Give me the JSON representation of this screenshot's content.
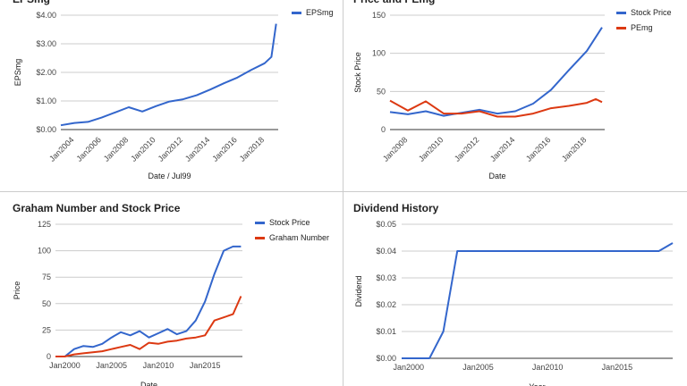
{
  "chart_data": [
    {
      "type": "line",
      "title": "EPSmg",
      "xlabel": "Date / Jul99",
      "ylabel": "EPSmg",
      "xlim": [
        2003,
        2019
      ],
      "ylim": [
        0,
        4
      ],
      "yticks": [
        "$0.00",
        "$1.00",
        "$2.00",
        "$3.00",
        "$4.00"
      ],
      "xtick_values": [
        2004,
        2006,
        2008,
        2010,
        2012,
        2014,
        2016,
        2018
      ],
      "xtick_labels": [
        "Jan2004",
        "Jan2006",
        "Jan2008",
        "Jan2010",
        "Jan2012",
        "Jan2014",
        "Jan2016",
        "Jan2018"
      ],
      "legend": "top-right",
      "series": [
        {
          "name": "EPSmg",
          "color": "#3366cc",
          "x": [
            2003,
            2004,
            2005,
            2006,
            2007,
            2008,
            2009,
            2010,
            2011,
            2012,
            2013,
            2014,
            2015,
            2016,
            2017,
            2018,
            2018.5,
            2018.85
          ],
          "y": [
            0.15,
            0.23,
            0.27,
            0.42,
            0.6,
            0.78,
            0.63,
            0.82,
            0.98,
            1.06,
            1.2,
            1.4,
            1.62,
            1.82,
            2.08,
            2.32,
            2.54,
            3.7
          ]
        }
      ]
    },
    {
      "type": "line",
      "title": "Price and PEmg",
      "xlabel": "Date",
      "ylabel": "Stock Price",
      "xlim": [
        2007,
        2019
      ],
      "ylim": [
        0,
        150
      ],
      "yticks": [
        "0",
        "50",
        "100",
        "150"
      ],
      "xtick_values": [
        2008,
        2010,
        2012,
        2014,
        2016,
        2018
      ],
      "xtick_labels": [
        "Jan2008",
        "Jan2010",
        "Jan2012",
        "Jan2014",
        "Jan2016",
        "Jan2018"
      ],
      "legend": "top-right",
      "series": [
        {
          "name": "Stock Price",
          "color": "#3366cc",
          "x": [
            2007,
            2008,
            2009,
            2010,
            2011,
            2012,
            2013,
            2014,
            2015,
            2016,
            2017,
            2018,
            2018.85
          ],
          "y": [
            23,
            20,
            24,
            18,
            22,
            26,
            21,
            24,
            34,
            52,
            78,
            103,
            134
          ]
        },
        {
          "name": "PEmg",
          "color": "#dc3912",
          "x": [
            2007,
            2008,
            2009,
            2010,
            2011,
            2012,
            2013,
            2014,
            2015,
            2016,
            2017,
            2018,
            2018.5,
            2018.85
          ],
          "y": [
            38,
            25,
            37,
            21,
            21,
            24,
            17,
            17,
            21,
            28,
            31,
            35,
            40,
            36
          ]
        }
      ]
    },
    {
      "type": "line",
      "title": "Graham Number and Stock Price",
      "xlabel": "Date",
      "ylabel": "Price",
      "xlim": [
        1999,
        2019
      ],
      "ylim": [
        0,
        125
      ],
      "yticks": [
        "0",
        "25",
        "50",
        "75",
        "100",
        "125"
      ],
      "xtick_values": [
        2000,
        2005,
        2010,
        2015
      ],
      "xtick_labels": [
        "Jan2000",
        "Jan2005",
        "Jan2010",
        "Jan2015"
      ],
      "legend": "top-right",
      "series": [
        {
          "name": "Stock Price",
          "color": "#3366cc",
          "x": [
            1999,
            2000,
            2001,
            2002,
            2003,
            2004,
            2005,
            2006,
            2007,
            2008,
            2009,
            2010,
            2011,
            2012,
            2013,
            2014,
            2015,
            2016,
            2017,
            2018,
            2018.85
          ],
          "y": [
            0,
            0,
            7,
            10,
            9,
            12,
            18,
            23,
            20,
            24,
            18,
            22,
            26,
            21,
            24,
            34,
            52,
            78,
            100,
            104,
            104
          ]
        },
        {
          "name": "Graham Number",
          "color": "#dc3912",
          "x": [
            1999,
            2000,
            2001,
            2002,
            2003,
            2004,
            2005,
            2006,
            2007,
            2008,
            2009,
            2010,
            2011,
            2012,
            2013,
            2014,
            2015,
            2016,
            2017,
            2018,
            2018.85
          ],
          "y": [
            0,
            0,
            2,
            3,
            4,
            5,
            7,
            9,
            11,
            7,
            13,
            12,
            14,
            15,
            17,
            18,
            20,
            34,
            37,
            40,
            57
          ]
        }
      ]
    },
    {
      "type": "line",
      "title": "Dividend History",
      "xlabel": "Year",
      "ylabel": "Dividend",
      "xlim": [
        1999.5,
        2019
      ],
      "ylim": [
        0,
        0.05
      ],
      "yticks": [
        "$0.00",
        "$0.01",
        "$0.02",
        "$0.03",
        "$0.04",
        "$0.05"
      ],
      "xtick_values": [
        2000,
        2005,
        2010,
        2015
      ],
      "xtick_labels": [
        "Jan2000",
        "Jan2005",
        "Jan2010",
        "Jan2015"
      ],
      "legend": "none",
      "series": [
        {
          "name": "Dividend",
          "color": "#3366cc",
          "x": [
            1999.5,
            2001.5,
            2002.5,
            2003.5,
            2005,
            2010,
            2015,
            2018,
            2019
          ],
          "y": [
            0,
            0,
            0.01,
            0.04,
            0.04,
            0.04,
            0.04,
            0.04,
            0.043
          ]
        }
      ]
    }
  ]
}
